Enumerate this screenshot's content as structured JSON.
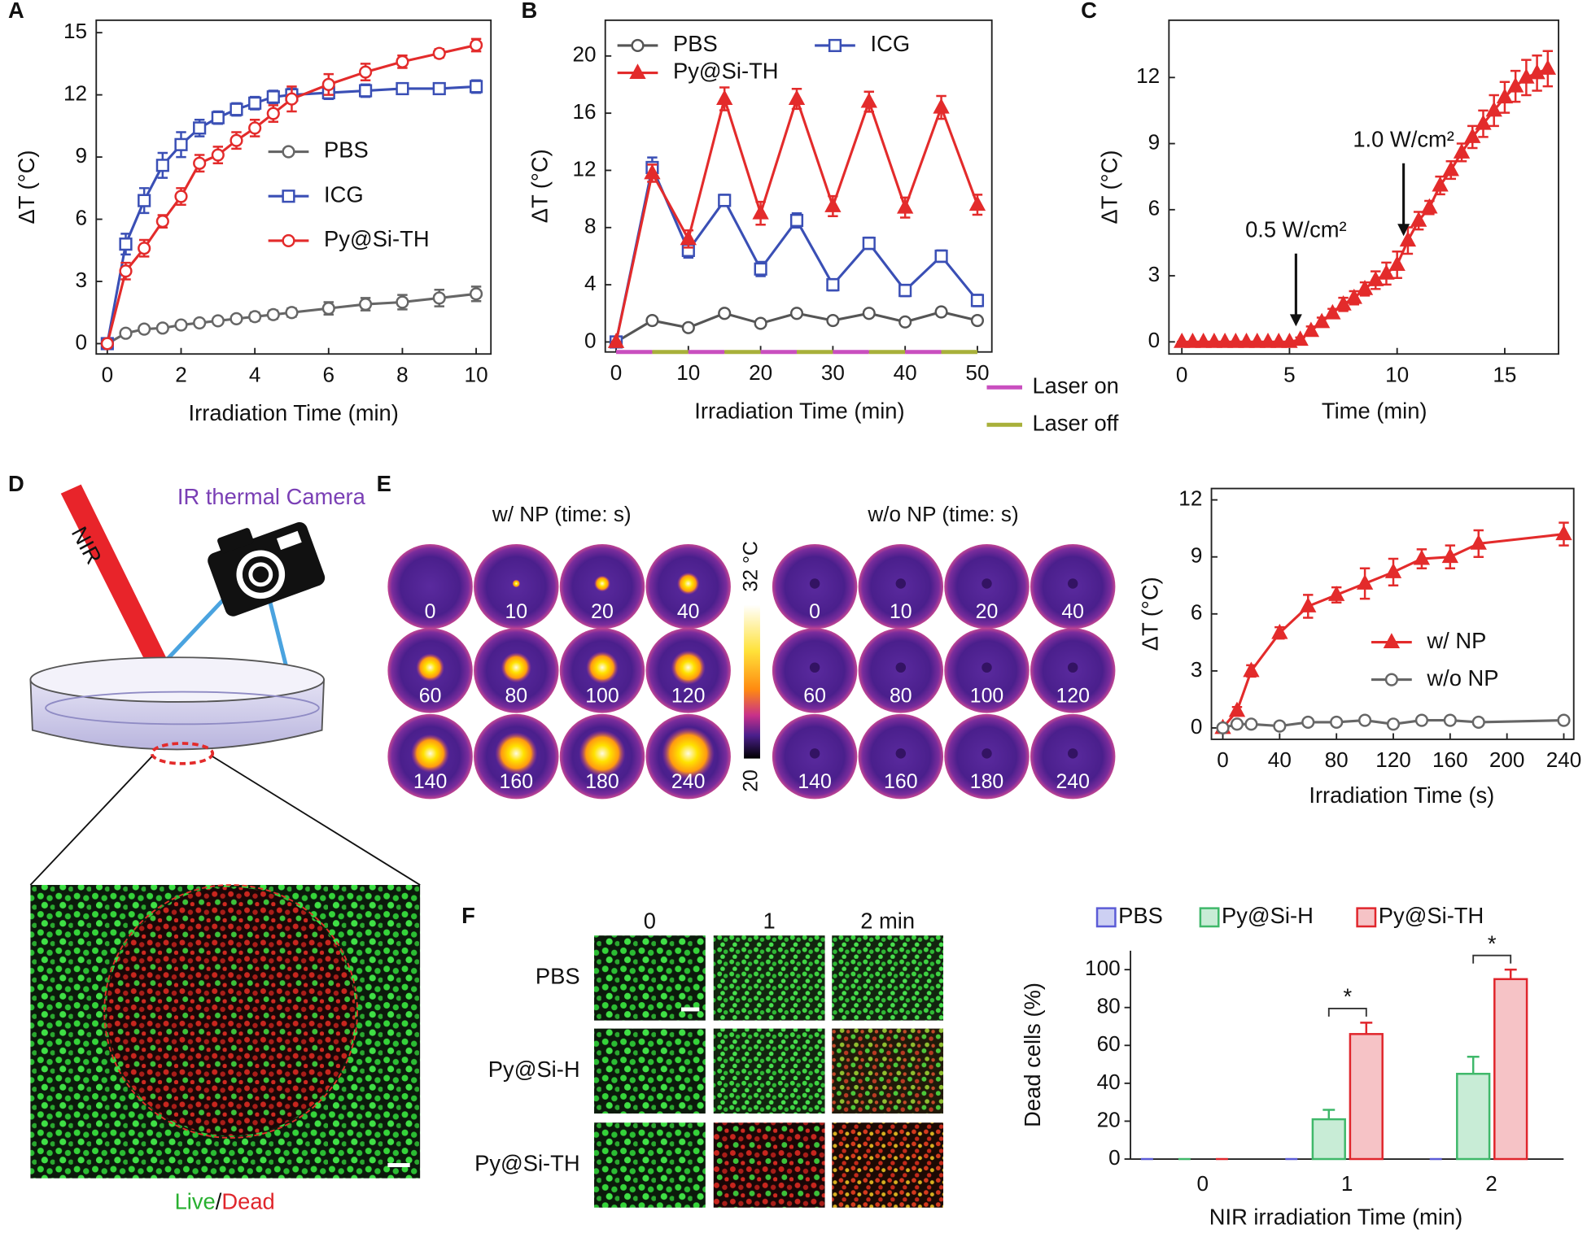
{
  "chart_data": [
    {
      "type": "line",
      "xlabel": "Irradiation Time (min)",
      "ylabel": "ΔT (°C)",
      "x": [
        0,
        0.5,
        1,
        1.5,
        2,
        2.5,
        3,
        3.5,
        4,
        4.5,
        5,
        6,
        7,
        8,
        9,
        10
      ],
      "series": [
        {
          "name": "PBS",
          "color": "#666666",
          "marker": "circle",
          "values": [
            0,
            0.5,
            0.7,
            0.75,
            0.9,
            1.0,
            1.1,
            1.2,
            1.3,
            1.4,
            1.5,
            1.7,
            1.9,
            2.0,
            2.2,
            2.4
          ],
          "errors": [
            0,
            0.1,
            0.1,
            0.1,
            0.1,
            0.1,
            0.15,
            0.15,
            0.2,
            0.2,
            0.2,
            0.3,
            0.3,
            0.35,
            0.4,
            0.35
          ]
        },
        {
          "name": "ICG",
          "color": "#3a4fb5",
          "marker": "square",
          "values": [
            0,
            4.8,
            6.9,
            8.6,
            9.6,
            10.4,
            10.9,
            11.3,
            11.6,
            11.9,
            12.0,
            12.1,
            12.2,
            12.3,
            12.3,
            12.4
          ],
          "errors": [
            0,
            0.5,
            0.6,
            0.6,
            0.6,
            0.4,
            0.3,
            0.3,
            0.3,
            0.3,
            0.3,
            0.3,
            0.3,
            0.2,
            0.2,
            0.3
          ]
        },
        {
          "name": "Py@Si-TH",
          "color": "#e32b2b",
          "marker": "circle",
          "values": [
            0,
            3.5,
            4.6,
            5.9,
            7.1,
            8.7,
            9.1,
            9.8,
            10.4,
            11.1,
            11.8,
            12.5,
            13.1,
            13.6,
            14.0,
            14.4
          ],
          "errors": [
            0,
            0.4,
            0.4,
            0.3,
            0.4,
            0.4,
            0.4,
            0.4,
            0.4,
            0.4,
            0.6,
            0.5,
            0.4,
            0.3,
            0.2,
            0.3
          ]
        }
      ],
      "xlim": [
        -0.3,
        10.4
      ],
      "ylim": [
        -0.5,
        15.6
      ],
      "xticks": [
        0,
        2,
        4,
        6,
        8,
        10
      ],
      "yticks": [
        0,
        3,
        6,
        9,
        12,
        15
      ],
      "legend": "right"
    },
    {
      "type": "line",
      "xlabel": "Irradiation Time (min)",
      "ylabel": "ΔT (°C)",
      "x": [
        0,
        5,
        10,
        15,
        20,
        25,
        30,
        35,
        40,
        45,
        50
      ],
      "series": [
        {
          "name": "PBS",
          "color": "#555555",
          "marker": "circle",
          "values": [
            0,
            1.5,
            1.0,
            2.0,
            1.3,
            2.0,
            1.5,
            2.0,
            1.4,
            2.1,
            1.5
          ],
          "errors": [
            0,
            0.2,
            0.2,
            0.2,
            0.2,
            0.2,
            0.2,
            0.2,
            0.2,
            0.2,
            0.2
          ]
        },
        {
          "name": "ICG",
          "color": "#3a4fb5",
          "marker": "square",
          "values": [
            0,
            12.2,
            6.4,
            9.9,
            5.1,
            8.5,
            4.0,
            6.9,
            3.6,
            6.0,
            2.9
          ],
          "errors": [
            0,
            0.7,
            0.5,
            0.4,
            0.5,
            0.5,
            0.4,
            0.4,
            0.4,
            0.4,
            0.4
          ]
        },
        {
          "name": "Py@Si-TH",
          "color": "#e32b2b",
          "marker": "triangle",
          "values": [
            0,
            11.8,
            7.2,
            17.0,
            9.0,
            17.0,
            9.5,
            16.8,
            9.4,
            16.4,
            9.6
          ],
          "errors": [
            0,
            0.6,
            0.6,
            0.8,
            0.8,
            0.7,
            0.7,
            0.7,
            0.7,
            0.8,
            0.7
          ]
        }
      ],
      "xlim": [
        -1.5,
        52
      ],
      "ylim": [
        -0.7,
        22.5
      ],
      "xticks": [
        0,
        10,
        20,
        30,
        40,
        50
      ],
      "yticks": [
        0,
        4,
        8,
        12,
        16,
        20
      ],
      "legend": "top",
      "laser": {
        "on": {
          "label": "Laser on",
          "color": "#c94fbf"
        },
        "off": {
          "label": "Laser off",
          "color": "#a8b03a"
        }
      }
    },
    {
      "type": "line",
      "xlabel": "Time (min)",
      "ylabel": "ΔT (°C)",
      "x": [
        0,
        0.5,
        1,
        1.5,
        2,
        2.5,
        3,
        3.5,
        4,
        4.5,
        5,
        5.5,
        6,
        6.5,
        7,
        7.5,
        8,
        8.5,
        9,
        9.5,
        10,
        10.5,
        11,
        11.5,
        12,
        12.5,
        13,
        13.5,
        14,
        14.5,
        15,
        15.5,
        16,
        16.5,
        17
      ],
      "series": [
        {
          "name": null,
          "color": "#e32b2b",
          "marker": "triangle",
          "values": [
            0,
            0,
            0,
            0,
            0,
            0,
            0,
            0,
            0,
            0,
            0,
            0.1,
            0.5,
            0.9,
            1.3,
            1.7,
            2.0,
            2.4,
            2.8,
            3.1,
            3.5,
            4.6,
            5.5,
            6.1,
            7.1,
            7.8,
            8.6,
            9.3,
            9.9,
            10.5,
            11.1,
            11.6,
            12.0,
            12.2,
            12.4
          ],
          "errors": [
            0,
            0,
            0,
            0,
            0,
            0,
            0,
            0,
            0,
            0,
            0,
            0.1,
            0.2,
            0.2,
            0.2,
            0.3,
            0.3,
            0.3,
            0.4,
            0.5,
            0.6,
            0.6,
            0.4,
            0.3,
            0.4,
            0.4,
            0.4,
            0.5,
            0.6,
            0.7,
            0.7,
            0.7,
            0.8,
            0.8,
            0.8
          ]
        }
      ],
      "annotations": [
        {
          "text": "0.5 W/cm²",
          "x": 5.3
        },
        {
          "text": "1.0 W/cm²",
          "x": 10.3
        }
      ],
      "xlim": [
        -0.6,
        17.5
      ],
      "ylim": [
        -0.55,
        14.6
      ],
      "xticks": [
        0,
        5,
        10,
        15
      ],
      "yticks": [
        0,
        3,
        6,
        9,
        12
      ]
    },
    {
      "type": "line",
      "xlabel": "Irradiation Time (s)",
      "ylabel": "ΔT (°C)",
      "x": [
        0,
        10,
        20,
        40,
        60,
        80,
        100,
        120,
        140,
        160,
        180,
        240
      ],
      "series": [
        {
          "name": "w/ NP",
          "color": "#e32b2b",
          "marker": "triangle",
          "values": [
            0,
            0.9,
            3.0,
            5.0,
            6.4,
            7.0,
            7.6,
            8.2,
            8.9,
            9.0,
            9.7,
            10.2
          ],
          "errors": [
            0,
            0.2,
            0.3,
            0.3,
            0.6,
            0.4,
            0.8,
            0.7,
            0.5,
            0.6,
            0.7,
            0.6
          ]
        },
        {
          "name": "w/o NP",
          "color": "#666666",
          "marker": "circle",
          "values": [
            0,
            0.2,
            0.2,
            0.1,
            0.3,
            0.3,
            0.4,
            0.2,
            0.4,
            0.4,
            0.3,
            0.4
          ],
          "errors": [
            0,
            0.1,
            0.1,
            0.1,
            0.1,
            0.1,
            0.1,
            0.1,
            0.1,
            0.1,
            0.1,
            0.1
          ]
        }
      ],
      "xlim": [
        -8,
        247
      ],
      "ylim": [
        -0.6,
        12.6
      ],
      "xticks": [
        0,
        40,
        80,
        120,
        160,
        200,
        240
      ],
      "yticks": [
        0,
        3,
        6,
        9,
        12
      ],
      "legend": "lower right"
    },
    {
      "type": "bar",
      "xlabel": "NIR irradiation Time (min)",
      "ylabel": "Dead cells (%)",
      "categories": [
        "0",
        "1",
        "2"
      ],
      "series": [
        {
          "name": "PBS",
          "color": "#5b5bd6",
          "fill": "#cdd0f3",
          "values": [
            0,
            0,
            0
          ],
          "errors": [
            0,
            0,
            0
          ]
        },
        {
          "name": "Py@Si-H",
          "color": "#3fb86a",
          "fill": "#c8ecd6",
          "values": [
            0,
            21,
            45
          ],
          "errors": [
            0,
            5,
            9
          ]
        },
        {
          "name": "Py@Si-TH",
          "color": "#e0262c",
          "fill": "#f6c3c6",
          "values": [
            0,
            66,
            95
          ],
          "errors": [
            0,
            6,
            5
          ]
        }
      ],
      "annotations": [
        {
          "text": "*",
          "category": "1"
        },
        {
          "text": "*",
          "category": "2"
        }
      ],
      "ylim": [
        0,
        110
      ],
      "yticks": [
        0,
        20,
        40,
        60,
        80,
        100
      ],
      "legend": "top"
    }
  ],
  "panel_labels": [
    "A",
    "B",
    "C",
    "D",
    "E",
    "F"
  ],
  "diagram": {
    "camera_label": "IR thermal Camera",
    "laser_label": "NIR",
    "live": "Live",
    "separator": "/",
    "dead": "Dead"
  },
  "thermal": {
    "with_np_title": "w/ NP (time: s)",
    "without_np_title": "w/o NP (time: s)",
    "times": [
      0,
      10,
      20,
      40,
      60,
      80,
      100,
      120,
      140,
      160,
      180,
      240
    ],
    "colorbar_max": "32 °C",
    "colorbar_min": "20"
  },
  "microscopy": {
    "columns": [
      "0",
      "1",
      "2 min"
    ],
    "rows": [
      "PBS",
      "Py@Si-H",
      "Py@Si-TH"
    ]
  }
}
